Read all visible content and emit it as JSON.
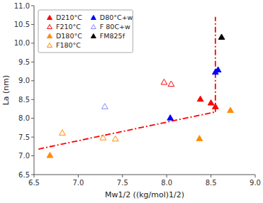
{
  "chart_data": {
    "type": "scatter",
    "xlabel": "Mw1/2 ((kg/mol)1/2)",
    "ylabel": "La (nm)",
    "xlim": [
      6.5,
      9.0
    ],
    "ylim": [
      6.5,
      11.0
    ],
    "xticks": [
      6.5,
      {
        "value": 7.0,
        "label": "7.0"
      },
      7.5,
      {
        "value": 8.0,
        "label": "8.0"
      },
      8.5,
      {
        "value": 9.0,
        "label": "9.0"
      }
    ],
    "yticks": [
      6.5,
      {
        "value": 7.0,
        "label": "7.0"
      },
      7.5,
      {
        "value": 8.0,
        "label": "8.0"
      },
      8.5,
      {
        "value": 9.0,
        "label": "9.0"
      },
      9.5,
      {
        "value": 10.0,
        "label": "10.0"
      },
      10.5,
      {
        "value": 11.0,
        "label": "11.0"
      }
    ],
    "grid": false,
    "legend": "upper left",
    "series": [
      {
        "name": "D210°C",
        "color": "#ff0000",
        "marker": "triangle",
        "x": [
          8.38,
          8.5,
          8.55
        ],
        "values": [
          8.5,
          8.4,
          8.3
        ]
      },
      {
        "name": "F210°C",
        "color": "#ff0000",
        "marker": "triangle-open",
        "x": [
          7.97,
          8.05
        ],
        "values": [
          8.95,
          8.9
        ]
      },
      {
        "name": "D180°C",
        "color": "#ff8c00",
        "marker": "triangle",
        "x": [
          6.68,
          8.37,
          8.72
        ],
        "values": [
          7.0,
          7.45,
          8.2
        ]
      },
      {
        "name": "F180°C",
        "color": "#ff8c00",
        "marker": "triangle-open",
        "x": [
          6.82,
          7.28,
          7.42
        ],
        "values": [
          7.6,
          7.47,
          7.44
        ]
      },
      {
        "name": "D80°C+w",
        "color": "#0000ff",
        "marker": "triangle",
        "x": [
          8.04,
          8.55,
          8.58
        ],
        "values": [
          8.0,
          9.22,
          9.28
        ]
      },
      {
        "name": "F 80C+w",
        "color": "#8888ff",
        "marker": "triangle-open",
        "x": [
          7.3
        ],
        "values": [
          8.3
        ]
      },
      {
        "name": "FM825f",
        "color": "#000000",
        "marker": "triangle",
        "x": [
          8.62
        ],
        "values": [
          10.15
        ]
      }
    ],
    "fit_lines": [
      {
        "type": "line",
        "x": [
          6.55,
          8.55
        ],
        "y": [
          7.18,
          8.17
        ],
        "color": "#ff0000",
        "line_style": "dash-dot"
      },
      {
        "type": "line",
        "x": [
          8.55,
          8.55
        ],
        "y": [
          8.17,
          10.7
        ],
        "color": "#ff0000",
        "line_style": "dash-dot"
      }
    ]
  }
}
